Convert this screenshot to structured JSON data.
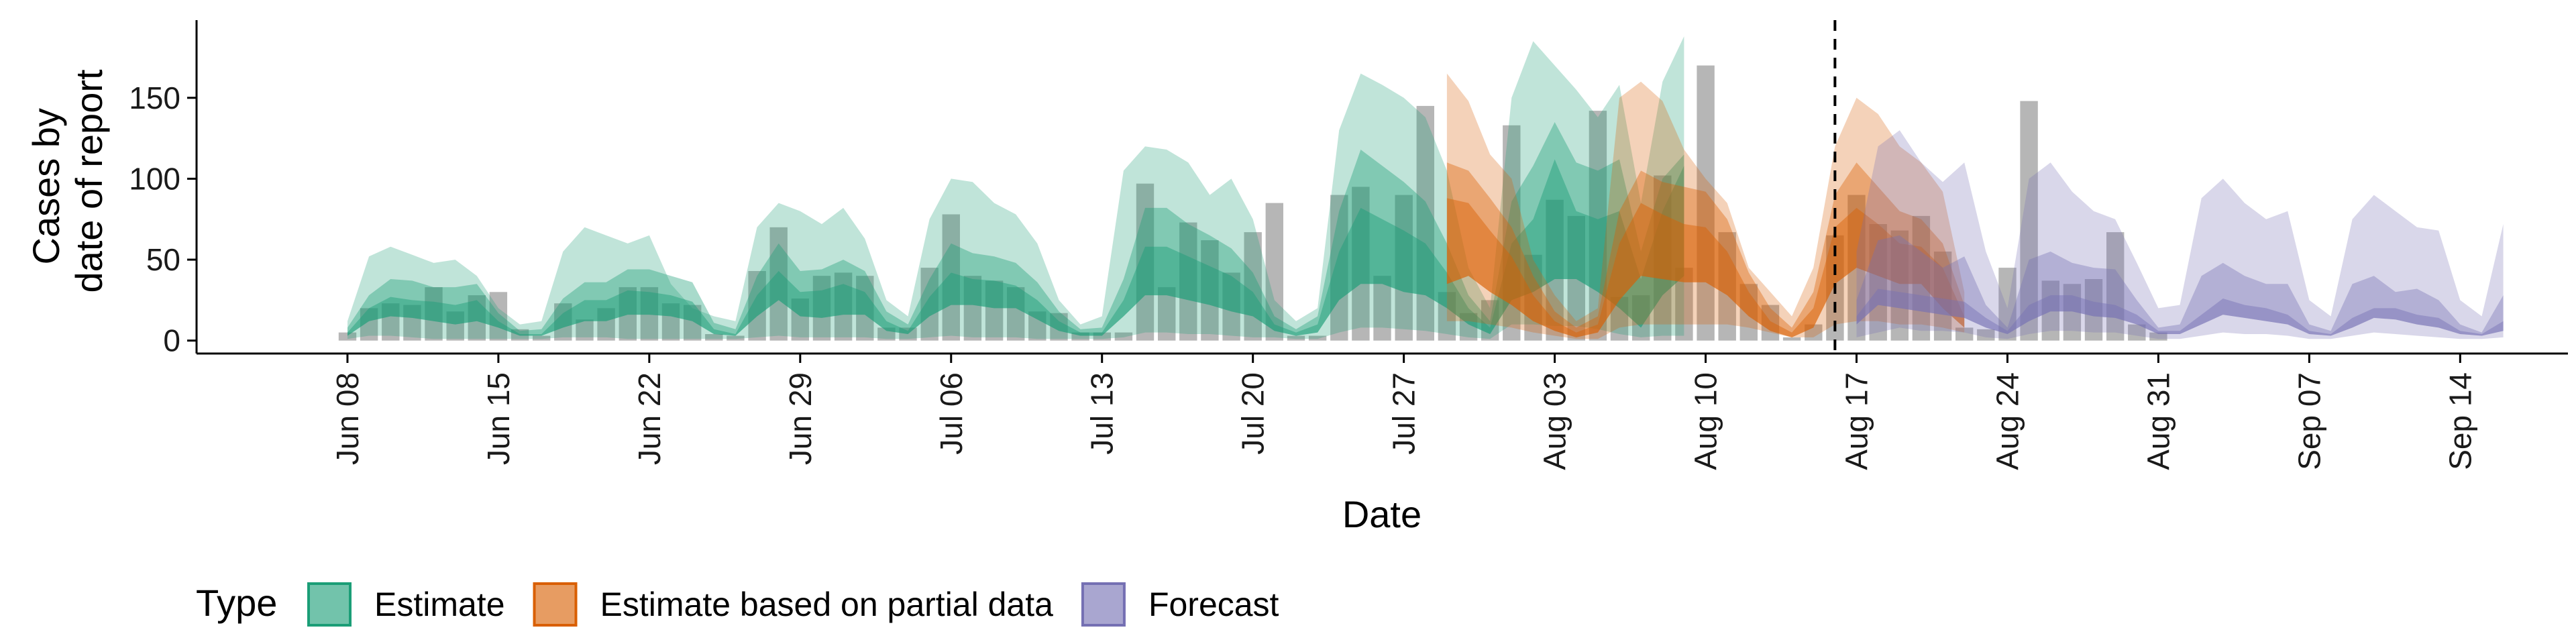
{
  "chart_data": {
    "type": "area",
    "xlabel": "Date",
    "ylabel_lines": [
      "Cases by",
      "date of report"
    ],
    "xlim": [
      "2020-06-01",
      "2020-09-19"
    ],
    "ylim": [
      -8,
      198
    ],
    "yticks": [
      0,
      50,
      100,
      150
    ],
    "xticks": [
      {
        "date": "2020-06-08",
        "label": "Jun 08"
      },
      {
        "date": "2020-06-15",
        "label": "Jun 15"
      },
      {
        "date": "2020-06-22",
        "label": "Jun 22"
      },
      {
        "date": "2020-06-29",
        "label": "Jun 29"
      },
      {
        "date": "2020-07-06",
        "label": "Jul 06"
      },
      {
        "date": "2020-07-13",
        "label": "Jul 13"
      },
      {
        "date": "2020-07-20",
        "label": "Jul 20"
      },
      {
        "date": "2020-07-27",
        "label": "Jul 27"
      },
      {
        "date": "2020-08-03",
        "label": "Aug 03"
      },
      {
        "date": "2020-08-10",
        "label": "Aug 10"
      },
      {
        "date": "2020-08-17",
        "label": "Aug 17"
      },
      {
        "date": "2020-08-24",
        "label": "Aug 24"
      },
      {
        "date": "2020-08-31",
        "label": "Aug 31"
      },
      {
        "date": "2020-09-07",
        "label": "Sep 07"
      },
      {
        "date": "2020-09-14",
        "label": "Sep 14"
      }
    ],
    "forecast_start_line": "2020-08-16",
    "legend": {
      "title": "Type",
      "position": "bottom-left",
      "entries": [
        {
          "label": "Estimate",
          "fill": "#1b9e77",
          "border": "#1b9e77"
        },
        {
          "label": "Estimate based on partial data",
          "fill": "#d95f02",
          "border": "#d95f02"
        },
        {
          "label": "Forecast",
          "fill": "#7570b3",
          "border": "#7570b3"
        }
      ]
    },
    "bars": {
      "color": "#9e9e9e",
      "start_date": "2020-06-08",
      "values": [
        5,
        20,
        23,
        22,
        33,
        18,
        28,
        30,
        7,
        3,
        23,
        13,
        20,
        33,
        33,
        23,
        22,
        4,
        3,
        43,
        70,
        26,
        40,
        42,
        40,
        8,
        8,
        45,
        78,
        40,
        37,
        33,
        18,
        17,
        5,
        5,
        5,
        97,
        33,
        73,
        62,
        42,
        67,
        85,
        3,
        3,
        90,
        95,
        40,
        90,
        145,
        30,
        17,
        25,
        133,
        53,
        87,
        77,
        142,
        27,
        28,
        102,
        45,
        170,
        67,
        35,
        22,
        2,
        10,
        65,
        90,
        72,
        68,
        77,
        55,
        8,
        7,
        45,
        148,
        37,
        35,
        38,
        67,
        10,
        5
      ]
    },
    "series": [
      {
        "name": "Estimate",
        "color": "#1b9e77",
        "start_date": "2020-06-08",
        "outer_lo": [
          1,
          3,
          3,
          2,
          1,
          1,
          1,
          1,
          1,
          1,
          2,
          2,
          2,
          1,
          1,
          1,
          1,
          1,
          1,
          2,
          3,
          2,
          2,
          2,
          2,
          1,
          1,
          2,
          3,
          2,
          2,
          2,
          1,
          1,
          1,
          1,
          2,
          5,
          5,
          4,
          4,
          3,
          2,
          2,
          1,
          1,
          5,
          8,
          8,
          7,
          6,
          4,
          2,
          1,
          10,
          10,
          9,
          9,
          7,
          4,
          2,
          3,
          3
        ],
        "inner_lo": [
          3,
          12,
          15,
          14,
          12,
          10,
          12,
          8,
          3,
          3,
          8,
          12,
          12,
          16,
          16,
          15,
          12,
          4,
          3,
          15,
          25,
          15,
          14,
          16,
          16,
          6,
          4,
          15,
          22,
          22,
          20,
          20,
          13,
          6,
          3,
          3,
          15,
          28,
          28,
          25,
          22,
          18,
          15,
          6,
          3,
          5,
          25,
          35,
          35,
          30,
          28,
          20,
          10,
          4,
          25,
          30,
          38,
          38,
          30,
          20,
          8,
          28,
          40
        ],
        "median": [
          5,
          20,
          27,
          25,
          24,
          22,
          25,
          12,
          4,
          4,
          17,
          25,
          25,
          31,
          30,
          28,
          24,
          7,
          4,
          28,
          43,
          30,
          31,
          35,
          30,
          12,
          6,
          27,
          42,
          38,
          37,
          34,
          25,
          12,
          5,
          5,
          25,
          58,
          58,
          52,
          46,
          40,
          30,
          10,
          5,
          10,
          55,
          82,
          75,
          68,
          60,
          42,
          20,
          8,
          60,
          75,
          112,
          80,
          75,
          80,
          38,
          80,
          108
        ],
        "inner_hi": [
          8,
          28,
          38,
          37,
          33,
          33,
          35,
          17,
          6,
          7,
          26,
          36,
          36,
          44,
          44,
          40,
          36,
          11,
          7,
          40,
          60,
          43,
          44,
          50,
          43,
          18,
          10,
          38,
          60,
          54,
          52,
          48,
          36,
          18,
          7,
          8,
          38,
          82,
          82,
          72,
          65,
          57,
          42,
          15,
          7,
          15,
          80,
          118,
          108,
          98,
          86,
          60,
          28,
          12,
          86,
          108,
          135,
          110,
          105,
          112,
          55,
          100,
          115
        ],
        "outer_hi": [
          12,
          52,
          58,
          53,
          48,
          50,
          40,
          20,
          10,
          12,
          55,
          70,
          65,
          60,
          65,
          35,
          20,
          15,
          12,
          70,
          85,
          80,
          72,
          82,
          63,
          25,
          15,
          75,
          100,
          98,
          85,
          78,
          60,
          25,
          10,
          15,
          105,
          120,
          118,
          110,
          90,
          100,
          75,
          25,
          12,
          20,
          130,
          165,
          158,
          150,
          138,
          105,
          45,
          20,
          150,
          185,
          170,
          155,
          138,
          158,
          85,
          160,
          188
        ]
      },
      {
        "name": "Estimate based on partial data",
        "color": "#d95f02",
        "start_date": "2020-07-29",
        "outer_lo": [
          12,
          12,
          10,
          8,
          5,
          3,
          1,
          1,
          8,
          10,
          10,
          10,
          10,
          10,
          8,
          5,
          2,
          2,
          10,
          12,
          12,
          10,
          10,
          8,
          5
        ],
        "inner_lo": [
          35,
          40,
          30,
          22,
          12,
          6,
          2,
          5,
          25,
          40,
          38,
          36,
          36,
          28,
          15,
          6,
          2,
          8,
          35,
          45,
          40,
          35,
          35,
          20,
          8
        ],
        "median": [
          88,
          85,
          68,
          52,
          28,
          12,
          5,
          10,
          60,
          85,
          78,
          72,
          70,
          55,
          30,
          12,
          5,
          20,
          70,
          82,
          72,
          60,
          58,
          45,
          15
        ],
        "inner_hi": [
          110,
          105,
          88,
          70,
          40,
          18,
          8,
          15,
          80,
          105,
          98,
          95,
          92,
          75,
          42,
          20,
          8,
          30,
          90,
          110,
          95,
          80,
          75,
          60,
          22
        ],
        "outer_hi": [
          165,
          148,
          115,
          100,
          50,
          28,
          12,
          20,
          150,
          160,
          148,
          118,
          100,
          85,
          45,
          30,
          15,
          45,
          120,
          150,
          140,
          120,
          110,
          92,
          30
        ]
      },
      {
        "name": "Forecast",
        "color": "#7570b3",
        "start_date": "2020-08-17",
        "outer_lo": [
          2,
          5,
          8,
          6,
          6,
          5,
          2,
          1,
          4,
          6,
          6,
          5,
          5,
          3,
          1,
          1,
          3,
          5,
          4,
          4,
          3,
          1,
          1,
          3,
          5,
          4,
          3,
          2,
          1,
          1,
          2
        ],
        "inner_lo": [
          10,
          22,
          20,
          18,
          16,
          14,
          8,
          4,
          12,
          18,
          18,
          15,
          14,
          10,
          4,
          4,
          10,
          16,
          14,
          12,
          10,
          4,
          3,
          8,
          14,
          13,
          10,
          8,
          4,
          3,
          6
        ],
        "median": [
          15,
          32,
          30,
          28,
          26,
          24,
          14,
          6,
          22,
          28,
          28,
          24,
          22,
          16,
          6,
          6,
          16,
          26,
          22,
          20,
          16,
          6,
          4,
          14,
          20,
          20,
          16,
          14,
          6,
          4,
          12
        ],
        "inner_hi": [
          25,
          62,
          65,
          55,
          45,
          52,
          22,
          8,
          50,
          55,
          48,
          45,
          44,
          25,
          8,
          10,
          40,
          48,
          40,
          35,
          35,
          10,
          6,
          35,
          40,
          30,
          32,
          25,
          10,
          5,
          28
        ],
        "outer_hi": [
          55,
          120,
          130,
          110,
          98,
          110,
          55,
          20,
          100,
          110,
          92,
          80,
          75,
          48,
          20,
          22,
          88,
          100,
          85,
          75,
          80,
          25,
          15,
          75,
          90,
          80,
          70,
          68,
          25,
          15,
          72
        ]
      }
    ]
  }
}
